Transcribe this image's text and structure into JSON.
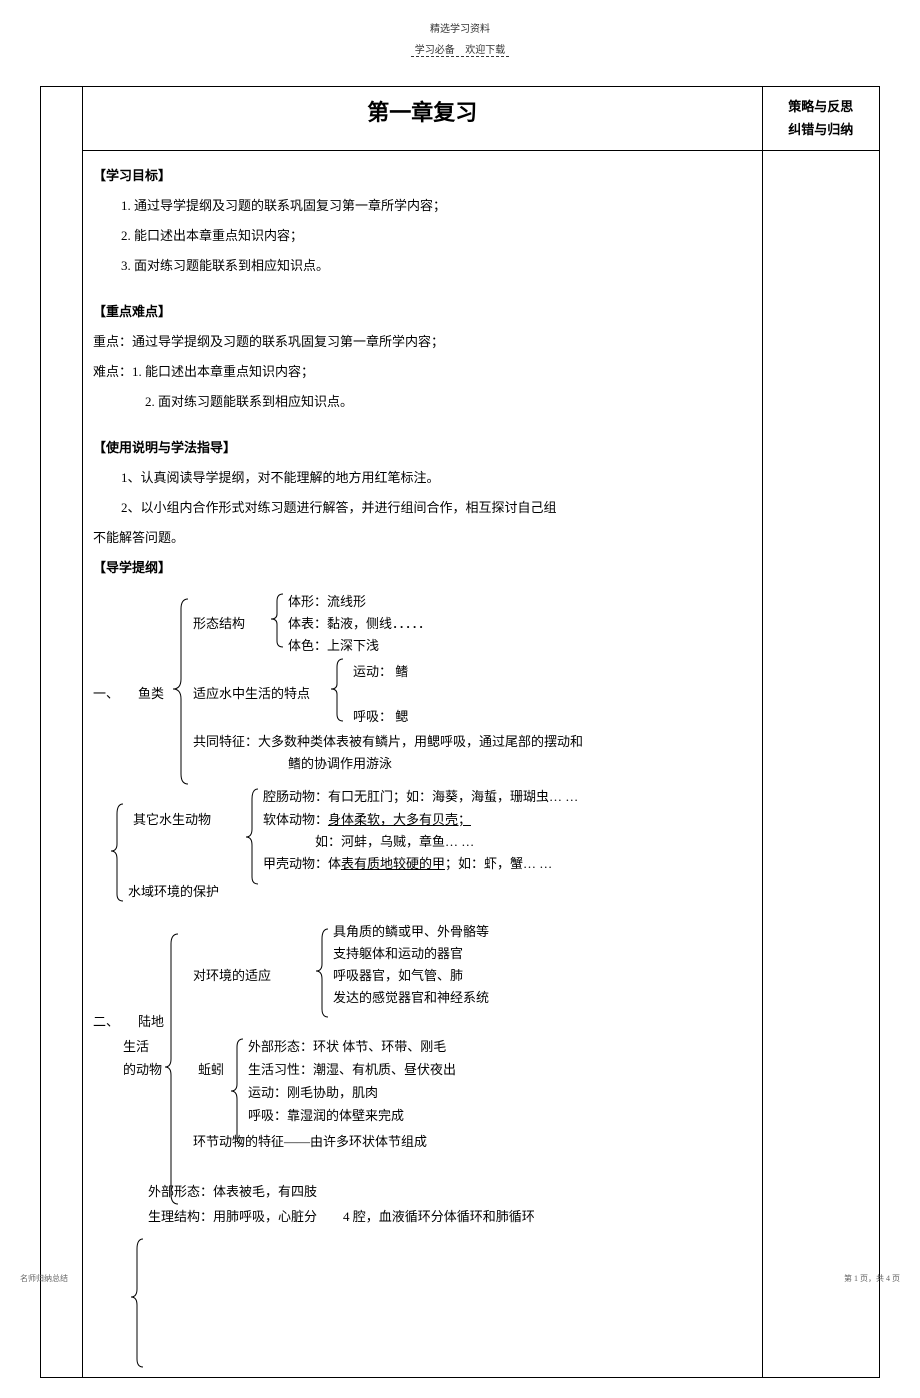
{
  "header": {
    "top": "精选学习资料",
    "sub_left": "学习必备",
    "sub_right": "欢迎下载"
  },
  "title": "第一章复习",
  "sidebar": {
    "line1": "策略与反思",
    "line2": "纠错与归纳"
  },
  "objectives": {
    "heading": "【学习目标】",
    "items": [
      "1. 通过导学提纲及习题的联系巩固复习第一章所学内容；",
      "2. 能口述出本章重点知识内容；",
      "3. 面对练习题能联系到相应知识点。"
    ]
  },
  "keypoints": {
    "heading": "【重点难点】",
    "emphasis_label": "重点",
    "emphasis_text": "：通过导学提纲及习题的联系巩固复习第一章所学内容；",
    "difficulty_label": "难点：",
    "difficulty_items": [
      "1. 能口述出本章重点知识内容；",
      "2. 面对练习题能联系到相应知识点。"
    ]
  },
  "instructions": {
    "heading": "【使用说明与学法指导】",
    "items": [
      "1、认真阅读导学提纲，对不能理解的地方用红笔标注。",
      "2、以小组内合作形式对练习题进行解答，并进行组间合作，相互探讨自己组"
    ],
    "cont": "不能解答问题。"
  },
  "outline": {
    "heading": "【导学提纲】",
    "fish": {
      "num": "一、",
      "label": "鱼类",
      "shape_label": "形态结构",
      "shape_items": [
        "体形：流线形",
        "体表：黏液，侧线．．．．．",
        "体色：上深下浅"
      ],
      "adapt_label": "适应水中生活的特点",
      "adapt_items": [
        "运动： 鳍",
        "呼吸： 鳃"
      ],
      "common": "共同特征：大多数种类体表被有鳞片，用鳃呼吸，通过尾部的摆动和",
      "common2": "鳍的协调作用游泳",
      "other_label": "其它水生动物",
      "coelenterate": "腔肠动物：有口无肛门；如：海葵，海蜇，珊瑚虫… …",
      "mollusk1": "软体动物：身体柔软，大多有贝壳；",
      "mollusk2": "如：河蚌，乌贼，章鱼… …",
      "crustacean": "甲壳动物：体表有质地较硬的甲；如：虾，蟹… …",
      "water_protect": "水域环境的保护"
    },
    "land": {
      "num": "二、",
      "label1": "陆地",
      "label2": "生活",
      "label3": "的动物",
      "env_label": "对环境的适应",
      "env_items": [
        "具角质的鳞或甲、外骨骼等",
        "支持躯体和运动的器官",
        "呼吸器官，如气管、肺",
        "发达的感觉器官和神经系统"
      ],
      "earthworm_label": "蚯蚓",
      "earthworm_items": [
        "外部形态：环状  体节、环带、刚毛",
        "生活习性：潮湿、有机质、昼伏夜出",
        "运动：刚毛协助，肌肉",
        "呼吸：靠湿润的体壁来完成"
      ],
      "annelid": "环节动物的特征——由许多环状体节组成",
      "external": "外部形态：体表被毛，有四肢",
      "physio": "生理结构：用肺呼吸，心脏分　　4 腔，血液循环分体循环和肺循环"
    }
  },
  "footer": {
    "left": "名师归纳总结",
    "right": "第 1 页，共 4 页"
  }
}
